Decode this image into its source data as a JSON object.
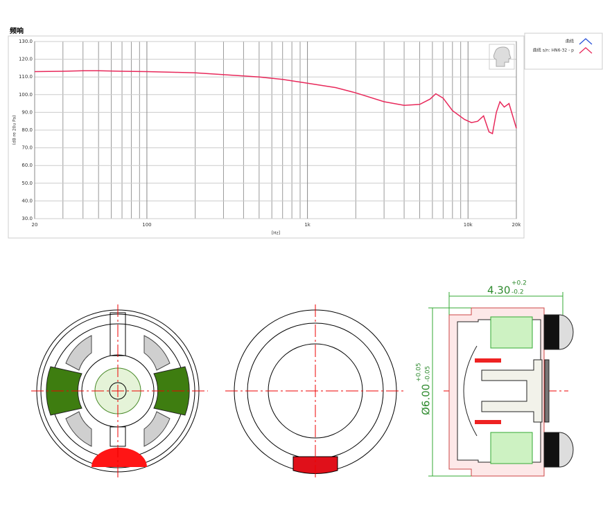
{
  "chart_data": {
    "type": "line",
    "title": "频响",
    "xlabel": "[Hz]",
    "ylabel": "(dB re 20u Pa)",
    "xscale": "log",
    "grid": true,
    "legend": "right",
    "xlim": [
      20,
      20000
    ],
    "ylim": [
      30,
      130
    ],
    "xticks": [
      20,
      100,
      {
        "value": 1000,
        "label": "1k"
      },
      {
        "value": 10000,
        "label": "10k"
      },
      {
        "value": 20000,
        "label": "20k"
      }
    ],
    "yticks": [
      {
        "value": 30,
        "label": "30.0"
      },
      {
        "value": 40,
        "label": "40.0"
      },
      {
        "value": 50,
        "label": "50.0"
      },
      {
        "value": 60,
        "label": "60.0"
      },
      {
        "value": 70,
        "label": "70.0"
      },
      {
        "value": 80,
        "label": "80.0"
      },
      {
        "value": 90,
        "label": "90.0"
      },
      {
        "value": 100,
        "label": "100.0"
      },
      {
        "value": 110,
        "label": "110.0"
      },
      {
        "value": 120,
        "label": "120.0"
      },
      {
        "value": 130,
        "label": "130.0"
      }
    ],
    "x": [
      20,
      30,
      40,
      50,
      70,
      100,
      150,
      200,
      300,
      500,
      700,
      1000,
      1500,
      2000,
      3000,
      4000,
      5000,
      5800,
      6300,
      7000,
      8000,
      9500,
      10500,
      11500,
      12500,
      13500,
      14200,
      15000,
      15800,
      16800,
      18000,
      20000
    ],
    "series": [
      {
        "name": "曲线",
        "color": "#2a52d8",
        "values": [
          null,
          null,
          null,
          null,
          null,
          null,
          null,
          null,
          null,
          null,
          null,
          null,
          null,
          null,
          null,
          null,
          null,
          null,
          null,
          null,
          null,
          null,
          null,
          null,
          null,
          null,
          null,
          null,
          null,
          null,
          null,
          null
        ]
      },
      {
        "name": "曲线 s/n: HN6-32 - p",
        "color": "#e8285a",
        "values": [
          113,
          113.2,
          113.5,
          113.5,
          113.2,
          113,
          112.6,
          112.3,
          111.3,
          110,
          108.6,
          106.5,
          104,
          101,
          96,
          94,
          94.5,
          97.5,
          100.5,
          98,
          91,
          86,
          84.2,
          85,
          88,
          79,
          78,
          90,
          96,
          93,
          95,
          81
        ]
      }
    ]
  },
  "drawing": {
    "length_dim": {
      "nominal": "4.30",
      "upper": "+0.2",
      "lower": "-0.2"
    },
    "diameter_dim": {
      "nominal": "Ø6.00",
      "upper": "+0.05",
      "lower": "-0.05"
    }
  }
}
